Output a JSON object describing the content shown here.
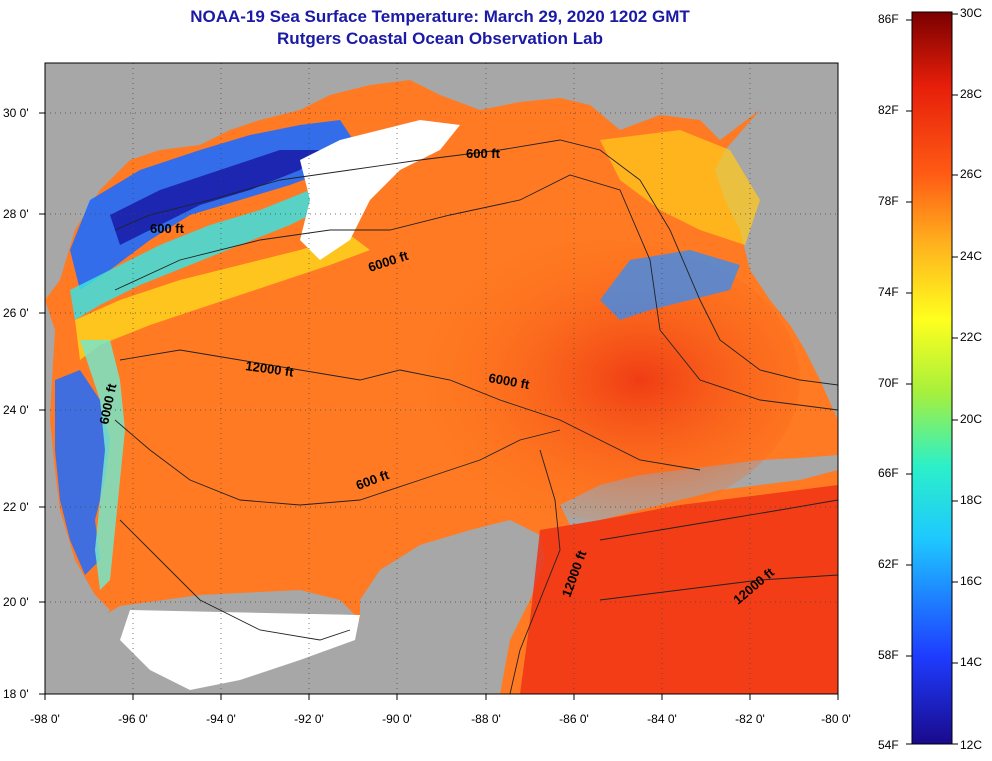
{
  "title": "NOAA-19 Sea Surface Temperature:  March 29, 2020 1202 GMT",
  "subtitle": "Rutgers Coastal Ocean Observation Lab",
  "x_ticks": [
    "-98 0'",
    "-96 0'",
    "-94 0'",
    "-92 0'",
    "-90 0'",
    "-88 0'",
    "-86 0'",
    "-84 0'",
    "-82 0'",
    "-80 0'"
  ],
  "y_ticks": [
    "30 0'",
    "28 0'",
    "26 0'",
    "24 0'",
    "22 0'",
    "20 0'",
    "18 0'"
  ],
  "colorbar": {
    "fahrenheit": [
      "86F",
      "82F",
      "78F",
      "74F",
      "70F",
      "66F",
      "62F",
      "58F",
      "54F"
    ],
    "celsius": [
      "30C",
      "28C",
      "26C",
      "24C",
      "22C",
      "20C",
      "18C",
      "16C",
      "14C",
      "12C"
    ]
  },
  "contour_labels": [
    {
      "text": "600 ft"
    },
    {
      "text": "600 ft"
    },
    {
      "text": "600 ft"
    },
    {
      "text": "6000 ft"
    },
    {
      "text": "6000 ft"
    },
    {
      "text": "6000 ft"
    },
    {
      "text": "12000 ft"
    },
    {
      "text": "12000 ft"
    },
    {
      "text": "12000 ft"
    }
  ],
  "colors": {
    "land": "#a7a7a7",
    "cloud": "#ffffff",
    "warm": "#ff5a14",
    "title": "#1a1aa6"
  }
}
